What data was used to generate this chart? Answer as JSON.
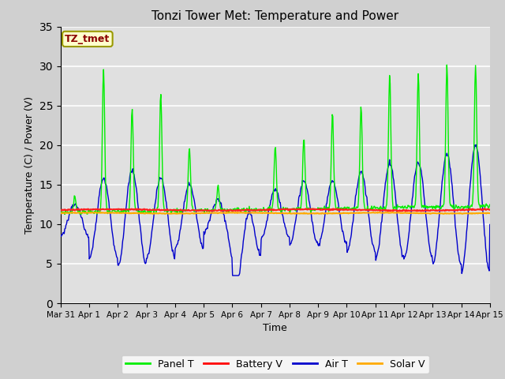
{
  "title": "Tonzi Tower Met: Temperature and Power",
  "xlabel": "Time",
  "ylabel": "Temperature (C) / Power (V)",
  "ylim": [
    0,
    35
  ],
  "yticks": [
    0,
    5,
    10,
    15,
    20,
    25,
    30,
    35
  ],
  "fig_facecolor": "#d0d0d0",
  "ax_facecolor": "#e0e0e0",
  "annotation_text": "TZ_tmet",
  "annotation_bg": "#ffffcc",
  "annotation_fg": "#8b0000",
  "legend_labels": [
    "Panel T",
    "Battery V",
    "Air T",
    "Solar V"
  ],
  "legend_colors": [
    "#00ee00",
    "#ff0000",
    "#0000cc",
    "#ffaa00"
  ],
  "series_colors": {
    "panel_t": "#00ee00",
    "battery_v": "#ff2020",
    "air_t": "#0000cc",
    "solar_v": "#ffaa00"
  },
  "x_tick_labels": [
    "Mar 31",
    "Apr 1",
    "Apr 2",
    "Apr 3",
    "Apr 4",
    "Apr 5",
    "Apr 6",
    "Apr 7",
    "Apr 8",
    "Apr 9",
    "Apr 10",
    "Apr 11",
    "Apr 12",
    "Apr 13",
    "Apr 14",
    "Apr 15"
  ],
  "n_points": 720
}
